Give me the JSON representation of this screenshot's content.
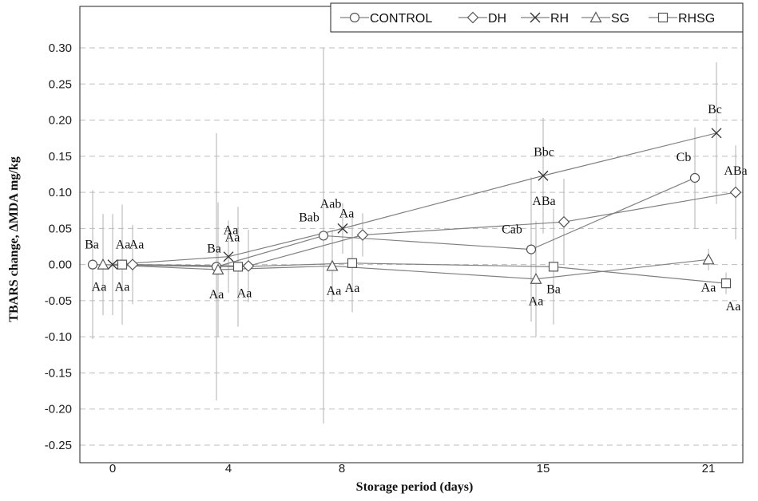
{
  "chart_data": {
    "type": "line",
    "title": "",
    "xlabel": "Storage period  (days)",
    "ylabel": "TBARS change, ΔMDA mg/kg",
    "categories": [
      "0",
      "4",
      "8",
      "15",
      "21"
    ],
    "ylim": [
      -0.25,
      0.3
    ],
    "yticks": [
      "0.30",
      "0.25",
      "0.20",
      "0.15",
      "0.10",
      "0.05",
      "0.00",
      "-0.05",
      "-0.10",
      "-0.15",
      "-0.20",
      "-0.25"
    ],
    "ytick_values": [
      0.3,
      0.25,
      0.2,
      0.15,
      0.1,
      0.05,
      0.0,
      -0.05,
      -0.1,
      -0.15,
      -0.2,
      -0.25
    ],
    "grid": "horizontal dashed",
    "legend_position": "top-right",
    "series": [
      {
        "name": "CONTROL",
        "marker": "circle",
        "values": [
          0.0,
          -0.003,
          0.04,
          0.021,
          0.12
        ],
        "errors": [
          0.103,
          0.185,
          0.26,
          0.1,
          0.07
        ],
        "labels": [
          "Ba",
          "Ba",
          "Bab",
          "Cab",
          "Cb"
        ]
      },
      {
        "name": "DH",
        "marker": "diamond",
        "values": [
          0.0,
          -0.002,
          0.041,
          0.059,
          0.1
        ],
        "errors": [
          0.055,
          0.05,
          0.03,
          0.06,
          0.065
        ],
        "labels": [
          "Aa",
          "Aa",
          "Aa",
          "ABa",
          "ABa"
        ]
      },
      {
        "name": "RH",
        "marker": "x",
        "values": [
          0.0,
          0.011,
          0.05,
          0.123,
          0.182
        ],
        "errors": [
          0.07,
          0.05,
          0.035,
          0.08,
          0.098
        ],
        "labels": [
          "Aa",
          "Aa",
          "Aab",
          "Bbc",
          "Bc"
        ]
      },
      {
        "name": "SG",
        "marker": "triangle",
        "values": [
          0.0,
          -0.007,
          -0.002,
          -0.02,
          0.007
        ],
        "errors": [
          0.07,
          0.093,
          0.05,
          0.08,
          0.015
        ],
        "labels": [
          "Aa",
          "Aa",
          "Aa",
          "Aa",
          "Aa"
        ]
      },
      {
        "name": "RHSG",
        "marker": "square",
        "values": [
          0.0,
          -0.003,
          0.002,
          -0.003,
          -0.026
        ],
        "errors": [
          0.083,
          0.083,
          0.068,
          0.08,
          0.015
        ],
        "labels": [
          "Aa",
          "Aa",
          "Aa",
          "Ba",
          "Aa"
        ]
      }
    ]
  }
}
